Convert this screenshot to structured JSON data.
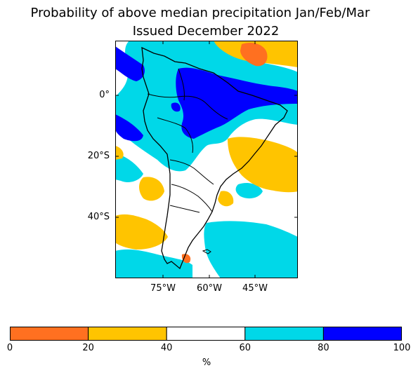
{
  "title": {
    "line1": "Probability of above median precipitation Jan/Feb/Mar",
    "line2": "Issued December 2022"
  },
  "map": {
    "region": "South America",
    "lat_ticks": [
      "0°",
      "20°S",
      "40°S"
    ],
    "lon_ticks": [
      "75°W",
      "60°W",
      "45°W"
    ]
  },
  "colorbar": {
    "unit": "%",
    "tick_labels": [
      "0",
      "20",
      "40",
      "60",
      "80",
      "100"
    ],
    "bins": [
      {
        "range": [
          0,
          20
        ],
        "color": "#ff7020"
      },
      {
        "range": [
          20,
          40
        ],
        "color": "#ffc400"
      },
      {
        "range": [
          40,
          60
        ],
        "color": "#ffffff"
      },
      {
        "range": [
          60,
          80
        ],
        "color": "#00d8e8"
      },
      {
        "range": [
          80,
          100
        ],
        "color": "#0000ff"
      }
    ]
  }
}
